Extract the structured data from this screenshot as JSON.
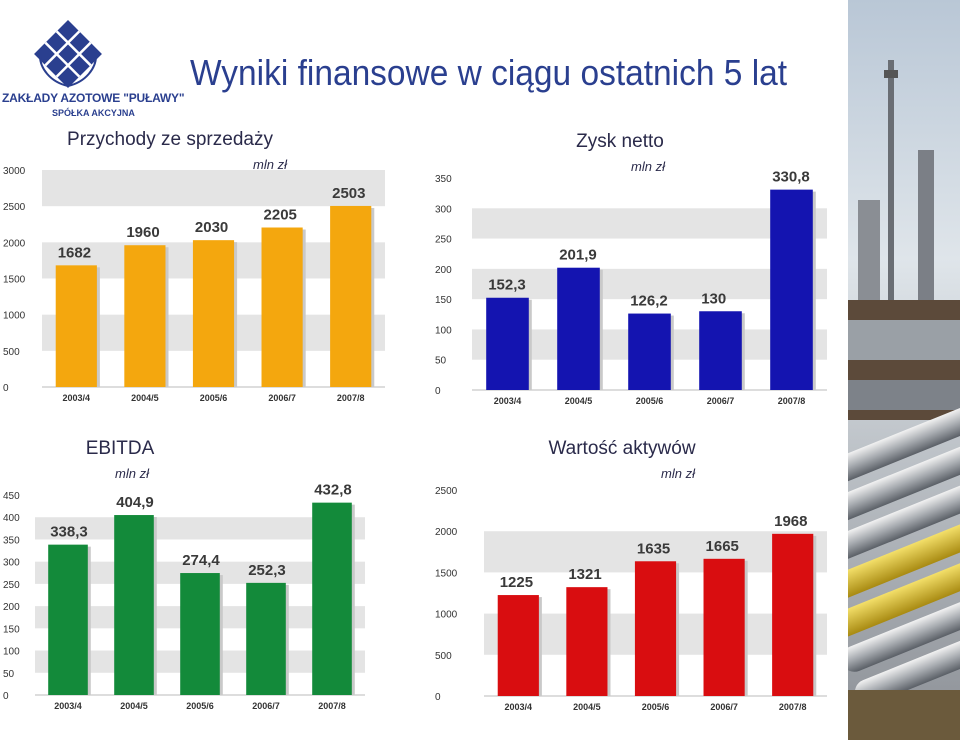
{
  "logo": {
    "line1": "ZAKŁADY AZOTOWE \"PUŁAWY\"",
    "line2": "SPÓŁKA AKCYJNA"
  },
  "page_title": "Wyniki finansowe w ciągu ostatnich 5 lat",
  "colors": {
    "brand_blue": "#2a3f8f",
    "przychody": "#f4a70e",
    "zysk": "#1414b0",
    "ebitda": "#138a3a",
    "aktywa": "#d90d10",
    "stripe": "#e4e4e4"
  },
  "chart_data": [
    {
      "id": "przychody",
      "type": "bar",
      "title": "Przychody ze sprzedaży",
      "subtitle": "mln zł",
      "categories": [
        "2003/4",
        "2004/5",
        "2005/6",
        "2006/7",
        "2007/8"
      ],
      "values": [
        1682,
        1960,
        2030,
        2205,
        2503
      ],
      "value_labels": [
        "1682",
        "1960",
        "2030",
        "2205",
        "2503"
      ],
      "ylim": [
        0,
        3000
      ],
      "yticks": [
        "0",
        "500",
        "1000",
        "1500",
        "2000",
        "2500",
        "3000"
      ],
      "ytick_values": [
        0,
        500,
        1000,
        1500,
        2000,
        2500,
        3000
      ],
      "color": "#f4a70e",
      "grid": "alternating horizontal bands"
    },
    {
      "id": "zysk",
      "type": "bar",
      "title": "Zysk netto",
      "subtitle": "mln zł",
      "categories": [
        "2003/4",
        "2004/5",
        "2005/6",
        "2006/7",
        "2007/8"
      ],
      "values": [
        152.3,
        201.9,
        126.2,
        130,
        330.8
      ],
      "value_labels": [
        "152,3",
        "201,9",
        "126,2",
        "130",
        "330,8"
      ],
      "ylim": [
        0,
        350
      ],
      "yticks": [
        "0",
        "50",
        "100",
        "150",
        "200",
        "250",
        "300",
        "350"
      ],
      "ytick_values": [
        0,
        50,
        100,
        150,
        200,
        250,
        300,
        350
      ],
      "color": "#1414b0",
      "grid": "alternating horizontal bands"
    },
    {
      "id": "ebitda",
      "type": "bar",
      "title": "EBITDA",
      "subtitle": "mln zł",
      "categories": [
        "2003/4",
        "2004/5",
        "2005/6",
        "2006/7",
        "2007/8"
      ],
      "values": [
        338.3,
        404.9,
        274.4,
        252.3,
        432.8
      ],
      "value_labels": [
        "338,3",
        "404,9",
        "274,4",
        "252,3",
        "432,8"
      ],
      "ylim": [
        0,
        450
      ],
      "yticks": [
        "0",
        "50",
        "100",
        "150",
        "200",
        "250",
        "300",
        "350",
        "400",
        "450"
      ],
      "ytick_values": [
        0,
        50,
        100,
        150,
        200,
        250,
        300,
        350,
        400,
        450
      ],
      "color": "#138a3a",
      "grid": "alternating horizontal bands"
    },
    {
      "id": "aktywa",
      "type": "bar",
      "title": "Wartość aktywów",
      "subtitle": "mln zł",
      "categories": [
        "2003/4",
        "2004/5",
        "2005/6",
        "2006/7",
        "2007/8"
      ],
      "values": [
        1225,
        1321,
        1635,
        1665,
        1968
      ],
      "value_labels": [
        "1225",
        "1321",
        "1635",
        "1665",
        "1968"
      ],
      "ylim": [
        0,
        2500
      ],
      "yticks": [
        "0",
        "500",
        "1000",
        "1500",
        "2000",
        "2500"
      ],
      "ytick_values": [
        0,
        500,
        1000,
        1500,
        2000,
        2500
      ],
      "color": "#d90d10",
      "grid": "alternating horizontal bands"
    }
  ]
}
